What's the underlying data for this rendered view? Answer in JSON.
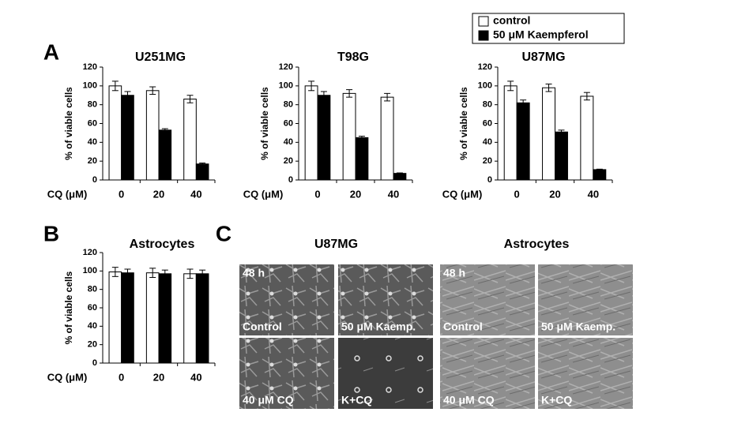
{
  "panel_labels": [
    "A",
    "B",
    "C"
  ],
  "chart_data": [
    {
      "type": "bar",
      "title": "U251MG",
      "ylabel": "% of viable cells",
      "xlabel": "CQ (μM)",
      "categories": [
        "0",
        "20",
        "40"
      ],
      "ylim": [
        0,
        120
      ],
      "yticks": [
        0,
        20,
        40,
        60,
        80,
        100,
        120
      ],
      "series": [
        {
          "name": "control",
          "color": "#ffffff",
          "values": [
            100,
            95,
            86
          ],
          "errors": [
            5,
            4,
            4
          ]
        },
        {
          "name": "50 μM Kaempferol",
          "color": "#000000",
          "values": [
            90,
            53,
            17
          ],
          "errors": [
            4,
            1.5,
            1
          ]
        }
      ]
    },
    {
      "type": "bar",
      "title": "T98G",
      "ylabel": "% of viable cells",
      "xlabel": "CQ (μM)",
      "categories": [
        "0",
        "20",
        "40"
      ],
      "ylim": [
        0,
        120
      ],
      "yticks": [
        0,
        20,
        40,
        60,
        80,
        100,
        120
      ],
      "series": [
        {
          "name": "control",
          "color": "#ffffff",
          "values": [
            100,
            92,
            88
          ],
          "errors": [
            5,
            4,
            4
          ]
        },
        {
          "name": "50 μM Kaempferol",
          "color": "#000000",
          "values": [
            90,
            45,
            7
          ],
          "errors": [
            4,
            1.5,
            0.5
          ]
        }
      ]
    },
    {
      "type": "bar",
      "title": "U87MG",
      "ylabel": "% of viable cells",
      "xlabel": "CQ (μM)",
      "categories": [
        "0",
        "20",
        "40"
      ],
      "ylim": [
        0,
        120
      ],
      "yticks": [
        0,
        20,
        40,
        60,
        80,
        100,
        120
      ],
      "series": [
        {
          "name": "control",
          "color": "#ffffff",
          "values": [
            100,
            98,
            89
          ],
          "errors": [
            5,
            4,
            4
          ]
        },
        {
          "name": "50 μM Kaempferol",
          "color": "#000000",
          "values": [
            82,
            51,
            11
          ],
          "errors": [
            3,
            2,
            0.5
          ]
        }
      ]
    },
    {
      "type": "bar",
      "title": "Astrocytes",
      "ylabel": "% of viable cells",
      "xlabel": "CQ (μM)",
      "categories": [
        "0",
        "20",
        "40"
      ],
      "ylim": [
        0,
        120
      ],
      "yticks": [
        0,
        20,
        40,
        60,
        80,
        100,
        120
      ],
      "series": [
        {
          "name": "control",
          "color": "#ffffff",
          "values": [
            99,
            98,
            97
          ],
          "errors": [
            5,
            5,
            5
          ]
        },
        {
          "name": "50 μM Kaempferol",
          "color": "#000000",
          "values": [
            98,
            97,
            97
          ],
          "errors": [
            4,
            4,
            4
          ]
        }
      ]
    }
  ],
  "panel_c": {
    "groups": [
      {
        "title": "U87MG",
        "images": [
          {
            "labels": [
              "48 h",
              "Control"
            ]
          },
          {
            "labels": [
              "50 μM Kaemp."
            ]
          },
          {
            "labels": [
              "40 μM CQ"
            ]
          },
          {
            "labels": [
              "K+CQ"
            ]
          }
        ]
      },
      {
        "title": "Astrocytes",
        "images": [
          {
            "labels": [
              "48 h",
              "Control"
            ]
          },
          {
            "labels": [
              "50 μM Kaemp."
            ]
          },
          {
            "labels": [
              "40 μM CQ"
            ]
          },
          {
            "labels": [
              "K+CQ"
            ]
          }
        ]
      }
    ]
  }
}
